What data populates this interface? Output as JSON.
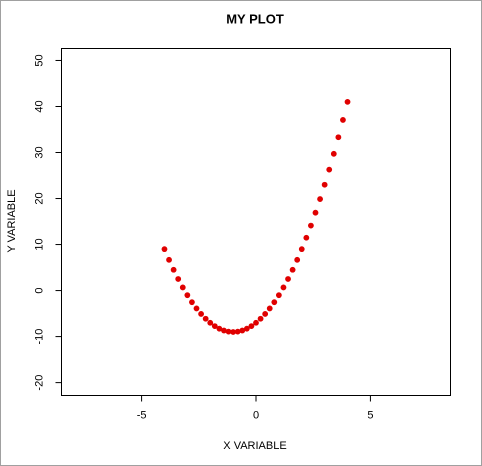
{
  "chart_data": {
    "type": "scatter",
    "title": "MY PLOT",
    "x_label": "X VARIABLE",
    "y_label": "Y VARIABLE",
    "color": "#e00000",
    "xlim": [
      -8.5,
      8.5
    ],
    "ylim": [
      -22.8,
      52.6
    ],
    "xticks": [
      -5,
      0,
      5
    ],
    "yticks": [
      -20,
      -10,
      0,
      10,
      20,
      30,
      40,
      50
    ],
    "x": [
      -4,
      -3.8,
      -3.6,
      -3.4,
      -3.2,
      -3,
      -2.8,
      -2.6,
      -2.4,
      -2.2,
      -2,
      -1.8,
      -1.6,
      -1.4,
      -1.2,
      -1,
      -0.8,
      -0.6,
      -0.4,
      -0.2,
      0,
      0.2,
      0.4,
      0.6,
      0.8,
      1,
      1.2,
      1.4,
      1.6,
      1.8,
      2,
      2.2,
      2.4,
      2.6,
      2.8,
      3,
      3.2,
      3.4,
      3.6,
      3.8,
      4
    ],
    "values": [
      9,
      6.68,
      4.52,
      2.52,
      0.68,
      -1,
      -2.52,
      -3.88,
      -5.08,
      -6.12,
      -7,
      -7.72,
      -8.28,
      -8.68,
      -8.92,
      -9,
      -8.92,
      -8.68,
      -8.28,
      -7.72,
      -7,
      -6.12,
      -5.08,
      -3.88,
      -2.52,
      -1,
      0.68,
      2.52,
      4.52,
      6.68,
      9,
      11.48,
      14.12,
      16.92,
      19.88,
      23,
      26.28,
      29.72,
      33.32,
      37.08,
      41
    ]
  }
}
